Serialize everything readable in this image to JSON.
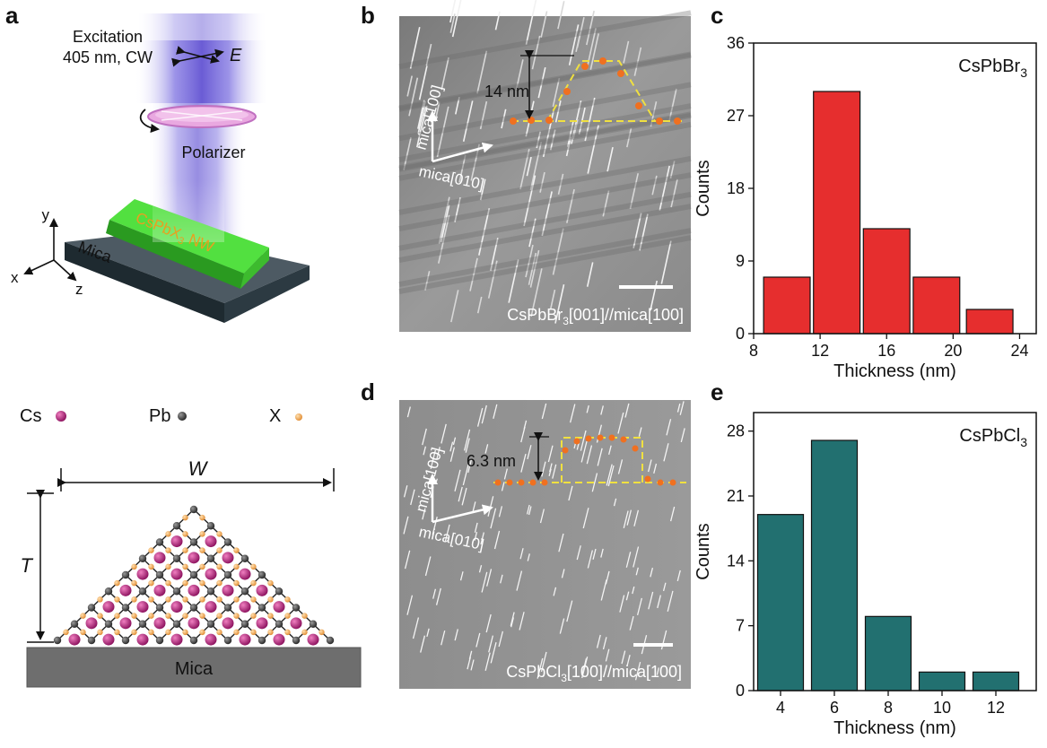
{
  "panels": {
    "a": "a",
    "b": "b",
    "c": "c",
    "d": "d",
    "e": "e"
  },
  "panel_a": {
    "excitation_line1": "Excitation",
    "excitation_line2": "405 nm, CW",
    "field_label": "E",
    "polarizer_label": "Polarizer",
    "nanowire_label": "CsPbX",
    "nanowire_sub": "3",
    "nanowire_suffix": " NW",
    "substrate_label": "Mica",
    "axis_x": "x",
    "axis_y": "y",
    "axis_z": "z",
    "legend": [
      {
        "label": "Cs",
        "color": "#b0207a"
      },
      {
        "label": "Pb",
        "color": "#444444"
      },
      {
        "label": "X",
        "color": "#f0a050"
      }
    ],
    "width_label": "W",
    "thickness_label": "T",
    "base_label": "Mica",
    "beam_color": "#6a5acd",
    "nanowire_color": "#4cd43a"
  },
  "panel_b": {
    "height_label": "14 nm",
    "dir1": "mica[100]",
    "dir2": "mica[010]",
    "caption_pre": "CsPbBr",
    "caption_sub": "3",
    "caption_post": "[001]//mica[100]"
  },
  "panel_d": {
    "height_label": "6.3 nm",
    "dir1": "mica[100]",
    "dir2": "mica[010]",
    "caption_pre": "CsPbCl",
    "caption_sub": "3",
    "caption_post": "[100]//mica[100]"
  },
  "chart_data": [
    {
      "type": "bar",
      "panel": "c",
      "title": "CsPbBr3",
      "title_main": "CsPbBr",
      "title_sub": "3",
      "xlabel": "Thickness (nm)",
      "ylabel": "Counts",
      "x": [
        10,
        13,
        16,
        19,
        22.2
      ],
      "values": [
        7,
        30,
        13,
        7,
        3
      ],
      "bar_width": 2.8,
      "xlim": [
        8,
        25
      ],
      "ylim": [
        0,
        36
      ],
      "xticks": [
        8,
        12,
        16,
        20,
        24
      ],
      "yticks": [
        0,
        9,
        18,
        27,
        36
      ],
      "color": "#e62e2e",
      "grid": false
    },
    {
      "type": "bar",
      "panel": "e",
      "title": "CsPbCl3",
      "title_main": "CsPbCl",
      "title_sub": "3",
      "xlabel": "Thickness (nm)",
      "ylabel": "Counts",
      "x": [
        4,
        6,
        8,
        10,
        12
      ],
      "values": [
        19,
        27,
        8,
        2,
        2
      ],
      "bar_width": 1.7,
      "xlim": [
        3,
        13.5
      ],
      "ylim": [
        0,
        30
      ],
      "xticks": [
        4,
        6,
        8,
        10,
        12
      ],
      "yticks": [
        0,
        7,
        14,
        21,
        28
      ],
      "color": "#227070",
      "grid": false
    }
  ]
}
